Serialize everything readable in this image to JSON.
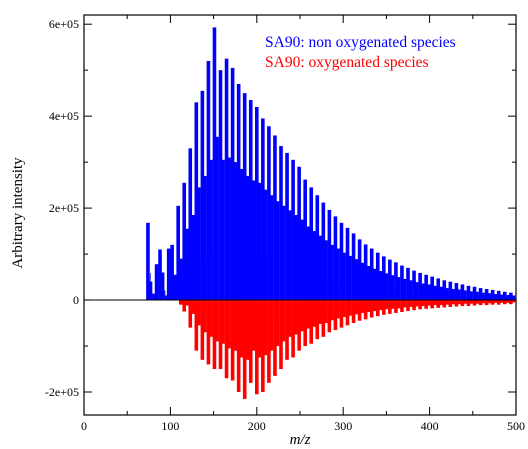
{
  "chart_data": {
    "type": "bar",
    "xlabel": "m/z",
    "ylabel": "Arbitrary intensity",
    "xlim": [
      0,
      500
    ],
    "ylim": [
      -250000,
      620000
    ],
    "x_ticks": [
      0,
      100,
      200,
      300,
      400,
      500
    ],
    "x_tick_labels": [
      "0",
      "100",
      "200",
      "300",
      "400",
      "500"
    ],
    "y_ticks": [
      -200000,
      0,
      200000,
      400000,
      600000
    ],
    "y_tick_labels": [
      "-2e+05",
      "0",
      "2e+05",
      "4e+05",
      "6e+05"
    ],
    "grid": false,
    "legend_position": "top-right",
    "series": [
      {
        "name": "SA90: non oxygenated species",
        "color": "#0000ff",
        "direction": "up",
        "x": [
          74,
          77,
          81,
          84,
          88,
          91,
          95,
          98,
          102,
          105,
          109,
          112,
          116,
          119,
          123,
          126,
          130,
          133,
          137,
          140,
          144,
          147,
          151,
          154,
          158,
          161,
          165,
          168,
          172,
          175,
          179,
          182,
          186,
          189,
          193,
          196,
          200,
          203,
          207,
          210,
          214,
          217,
          221,
          224,
          228,
          231,
          235,
          238,
          242,
          245,
          249,
          252,
          256,
          259,
          263,
          266,
          270,
          273,
          277,
          280,
          284,
          287,
          291,
          294,
          298,
          301,
          305,
          308,
          312,
          315,
          319,
          322,
          326,
          329,
          333,
          336,
          340,
          343,
          347,
          350,
          354,
          357,
          361,
          364,
          368,
          371,
          375,
          378,
          382,
          385,
          389,
          392,
          396,
          399,
          403,
          406,
          410,
          413,
          417,
          420,
          424,
          427,
          431,
          434,
          438,
          441,
          445,
          448,
          452,
          455,
          459,
          462,
          466,
          469,
          473,
          476,
          480,
          483,
          487,
          490,
          494,
          497
        ],
        "values": [
          168000,
          40000,
          14000,
          78000,
          110000,
          60000,
          10000,
          112000,
          120000,
          55000,
          205000,
          90000,
          255000,
          155000,
          330000,
          185000,
          430000,
          245000,
          455000,
          270000,
          520000,
          305000,
          593000,
          355000,
          500000,
          305000,
          525000,
          310000,
          505000,
          300000,
          470000,
          285000,
          450000,
          270000,
          435000,
          260000,
          420000,
          255000,
          395000,
          240000,
          378000,
          228000,
          358000,
          215000,
          335000,
          205000,
          320000,
          195000,
          305000,
          185000,
          290000,
          175000,
          262000,
          160000,
          245000,
          150000,
          228000,
          140000,
          212000,
          130000,
          196000,
          120000,
          182000,
          112000,
          168000,
          103000,
          157000,
          96000,
          145000,
          89000,
          132000,
          81000,
          121000,
          74000,
          112000,
          68000,
          103000,
          63000,
          95000,
          58000,
          88000,
          54000,
          82000,
          50000,
          75000,
          46000,
          70000,
          43000,
          64000,
          39000,
          59000,
          36000,
          55000,
          34000,
          51000,
          31000,
          47000,
          29000,
          43000,
          26000,
          40000,
          24000,
          37000,
          23000,
          34000,
          21000,
          31000,
          19000,
          29000,
          18000,
          26000,
          16000,
          24000,
          15000,
          22000,
          13000,
          20000,
          12000,
          18000,
          11000,
          16000,
          10000
        ]
      },
      {
        "name": "SA90: oxygenated species",
        "color": "#ff0000",
        "direction": "down",
        "x": [
          112,
          116,
          119,
          123,
          126,
          130,
          133,
          137,
          140,
          144,
          147,
          151,
          154,
          158,
          161,
          165,
          168,
          172,
          175,
          179,
          182,
          186,
          189,
          193,
          196,
          200,
          203,
          207,
          210,
          214,
          217,
          221,
          224,
          228,
          231,
          235,
          238,
          242,
          245,
          249,
          252,
          256,
          259,
          263,
          266,
          270,
          273,
          277,
          280,
          284,
          287,
          291,
          294,
          298,
          301,
          305,
          308,
          312,
          315,
          319,
          322,
          326,
          329,
          333,
          336,
          340,
          343,
          347,
          350,
          354,
          357,
          361,
          364,
          368,
          371,
          375,
          378,
          382,
          385,
          389,
          392,
          396,
          399,
          403,
          406,
          410,
          413,
          417,
          420,
          424,
          427,
          431,
          434,
          438,
          441,
          445,
          448,
          452,
          455,
          459,
          462,
          466,
          469,
          473,
          476,
          480,
          483,
          487,
          490,
          494,
          497
        ],
        "values": [
          -10000,
          -25000,
          -12000,
          -60000,
          -30000,
          -110000,
          -55000,
          -130000,
          -70000,
          -140000,
          -80000,
          -150000,
          -90000,
          -150000,
          -95000,
          -170000,
          -105000,
          -175000,
          -110000,
          -200000,
          -125000,
          -215000,
          -130000,
          -180000,
          -110000,
          -205000,
          -125000,
          -200000,
          -120000,
          -180000,
          -110000,
          -165000,
          -100000,
          -150000,
          -90000,
          -130000,
          -80000,
          -125000,
          -75000,
          -110000,
          -68000,
          -100000,
          -62000,
          -95000,
          -58000,
          -85000,
          -52000,
          -80000,
          -50000,
          -70000,
          -44000,
          -65000,
          -40000,
          -60000,
          -37000,
          -55000,
          -34000,
          -50000,
          -31000,
          -45000,
          -28000,
          -42000,
          -26000,
          -38000,
          -24000,
          -35000,
          -22000,
          -32000,
          -20000,
          -30000,
          -19000,
          -28000,
          -18000,
          -26000,
          -16000,
          -24000,
          -15000,
          -22000,
          -14000,
          -20000,
          -13000,
          -19000,
          -12000,
          -18000,
          -11000,
          -17000,
          -11000,
          -16000,
          -10000,
          -15000,
          -9000,
          -14000,
          -9000,
          -13000,
          -8000,
          -13000,
          -8000,
          -12000,
          -8000,
          -11000,
          -7000,
          -11000,
          -7000,
          -10000,
          -6000,
          -10000,
          -6000,
          -9000,
          -6000,
          -9000,
          -5000
        ]
      }
    ]
  }
}
